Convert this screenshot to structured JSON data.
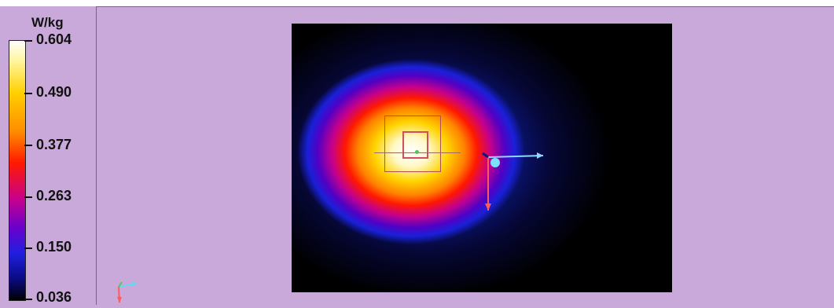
{
  "window": {
    "title": ""
  },
  "legend": {
    "unit": "W/kg",
    "ticks": [
      "0.604",
      "0.490",
      "0.377",
      "0.263",
      "0.150",
      "0.036"
    ],
    "max_value": 0.604,
    "min_value": 0.036
  },
  "colors": {
    "background": "#c9a9d9",
    "plate": "#000000",
    "hotspot": "#ffffff",
    "legend_top": "#ffffff",
    "legend_bottom": "#000000"
  },
  "scene": {
    "axis_colors": {
      "x": "#8fd7ff",
      "y": "#ff5a5a",
      "z": "#4ec95d"
    },
    "origin_marker": "#79e1ff"
  }
}
